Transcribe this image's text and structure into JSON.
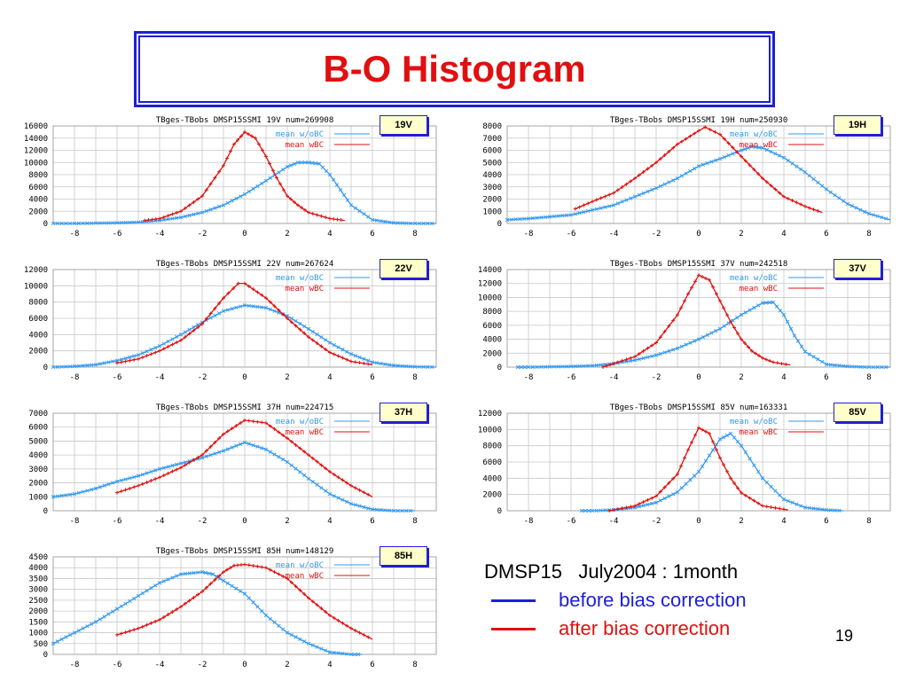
{
  "slide": {
    "title": "B-O Histogram",
    "info_line": "DMSP15   July2004 : 1month",
    "legend_before": "before bias correction",
    "legend_after": "after bias correction",
    "page_number": "19",
    "colors": {
      "before": "#1f1fd6",
      "after": "#e01010",
      "title": "#e01010",
      "frame": "#1f1fd6"
    }
  },
  "chart_data": [
    {
      "type": "line",
      "badge": "19V",
      "title": "TBges-TBobs DMSP15SSMI 19V num=269908",
      "xlim": [
        -9,
        9
      ],
      "xticks": [
        -8,
        -6,
        -4,
        -2,
        0,
        2,
        4,
        6,
        8
      ],
      "ylim": [
        0,
        16000
      ],
      "yticks": [
        0,
        2000,
        4000,
        6000,
        8000,
        10000,
        12000,
        14000,
        16000
      ],
      "series": [
        {
          "name": "mean w/oBC",
          "color": "#3399ee",
          "x": [
            -9,
            -8,
            -6,
            -5,
            -4,
            -3,
            -2,
            -1,
            0,
            1,
            2,
            2.5,
            3,
            3.5,
            4,
            4.5,
            5,
            6,
            7,
            8,
            9
          ],
          "y": [
            0,
            0,
            100,
            200,
            500,
            1000,
            1800,
            3000,
            4800,
            7000,
            9300,
            10000,
            10000,
            9800,
            8000,
            5500,
            3000,
            600,
            100,
            0,
            0
          ]
        },
        {
          "name": "mean wBC",
          "color": "#e01010",
          "x": [
            -4.7,
            -4,
            -3,
            -2,
            -1,
            -0.5,
            0,
            0.5,
            1,
            1.5,
            2,
            2.5,
            3,
            4,
            4.7
          ],
          "y": [
            500,
            800,
            2000,
            4500,
            9500,
            13000,
            15000,
            14000,
            11000,
            7500,
            4500,
            3000,
            1800,
            800,
            500
          ]
        }
      ]
    },
    {
      "type": "line",
      "badge": "19H",
      "title": "TBges-TBobs DMSP15SSMI 19H num=250930",
      "xlim": [
        -9,
        9
      ],
      "xticks": [
        -8,
        -6,
        -4,
        -2,
        0,
        2,
        4,
        6,
        8
      ],
      "ylim": [
        0,
        8000
      ],
      "yticks": [
        0,
        1000,
        2000,
        3000,
        4000,
        5000,
        6000,
        7000,
        8000
      ],
      "series": [
        {
          "name": "mean w/oBC",
          "color": "#3399ee",
          "x": [
            -9,
            -8,
            -6,
            -5,
            -4,
            -3,
            -2,
            -1,
            0,
            1,
            2,
            2.5,
            3,
            4,
            5,
            6,
            7,
            8,
            9
          ],
          "y": [
            300,
            400,
            700,
            1100,
            1500,
            2200,
            2900,
            3700,
            4700,
            5300,
            6000,
            6300,
            6200,
            5400,
            4200,
            2800,
            1600,
            800,
            300
          ]
        },
        {
          "name": "mean wBC",
          "color": "#e01010",
          "x": [
            -5.8,
            -5,
            -4,
            -3,
            -2,
            -1,
            0,
            0.3,
            1,
            2,
            3,
            4,
            5,
            5.8
          ],
          "y": [
            1200,
            1800,
            2500,
            3700,
            5000,
            6500,
            7600,
            7900,
            7300,
            5500,
            3700,
            2200,
            1400,
            900
          ]
        }
      ]
    },
    {
      "type": "line",
      "badge": "22V",
      "title": "TBges-TBobs DMSP15SSMI 22V num=267624",
      "xlim": [
        -9,
        9
      ],
      "xticks": [
        -8,
        -6,
        -4,
        -2,
        0,
        2,
        4,
        6,
        8
      ],
      "ylim": [
        0,
        12000
      ],
      "yticks": [
        0,
        2000,
        4000,
        6000,
        8000,
        10000,
        12000
      ],
      "series": [
        {
          "name": "mean w/oBC",
          "color": "#3399ee",
          "x": [
            -9,
            -8,
            -7,
            -6,
            -5,
            -4,
            -3,
            -2,
            -1,
            0,
            1,
            2,
            3,
            4,
            5,
            6,
            7,
            8,
            9
          ],
          "y": [
            0,
            100,
            300,
            800,
            1500,
            2600,
            4000,
            5500,
            6900,
            7600,
            7300,
            6300,
            4700,
            3000,
            1600,
            600,
            200,
            50,
            0
          ]
        },
        {
          "name": "mean wBC",
          "color": "#e01010",
          "x": [
            -6,
            -5,
            -4,
            -3,
            -2,
            -1,
            -0.3,
            0,
            1,
            2,
            3,
            4,
            5,
            6
          ],
          "y": [
            500,
            1000,
            2000,
            3300,
            5300,
            8500,
            10300,
            10300,
            8500,
            6000,
            3700,
            1800,
            700,
            300
          ]
        }
      ]
    },
    {
      "type": "line",
      "badge": "37V",
      "title": "TBges-TBobs DMSP15SSMI 37V num=242518",
      "xlim": [
        -9,
        9
      ],
      "xticks": [
        -8,
        -6,
        -4,
        -2,
        0,
        2,
        4,
        6,
        8
      ],
      "ylim": [
        0,
        14000
      ],
      "yticks": [
        0,
        2000,
        4000,
        6000,
        8000,
        10000,
        12000,
        14000
      ],
      "series": [
        {
          "name": "mean w/oBC",
          "color": "#3399ee",
          "x": [
            -8.5,
            -8,
            -6,
            -5,
            -4,
            -3,
            -2,
            -1,
            0,
            1,
            2,
            3,
            3.5,
            4,
            4.5,
            5,
            6,
            7,
            8,
            9
          ],
          "y": [
            0,
            0,
            100,
            200,
            500,
            1000,
            1700,
            2700,
            4000,
            5500,
            7500,
            9200,
            9300,
            7500,
            4500,
            2200,
            400,
            100,
            0,
            0
          ]
        },
        {
          "name": "mean wBC",
          "color": "#e01010",
          "x": [
            -4.5,
            -4,
            -3,
            -2,
            -1,
            -0.5,
            0,
            0.5,
            1,
            1.5,
            2,
            2.5,
            3,
            3.5,
            4.3
          ],
          "y": [
            0,
            500,
            1500,
            3500,
            7500,
            10500,
            13200,
            12500,
            9500,
            6500,
            4000,
            2300,
            1300,
            700,
            300
          ]
        }
      ]
    },
    {
      "type": "line",
      "badge": "37H",
      "title": "TBges-TBobs DMSP15SSMI 37H num=224715",
      "xlim": [
        -9,
        9
      ],
      "xticks": [
        -8,
        -6,
        -4,
        -2,
        0,
        2,
        4,
        6,
        8
      ],
      "ylim": [
        0,
        7000
      ],
      "yticks": [
        0,
        1000,
        2000,
        3000,
        4000,
        5000,
        6000,
        7000
      ],
      "series": [
        {
          "name": "mean w/oBC",
          "color": "#3399ee",
          "x": [
            -9,
            -8,
            -7,
            -6,
            -5,
            -4,
            -3,
            -2,
            -1,
            0,
            1,
            2,
            3,
            4,
            5,
            6,
            7,
            8
          ],
          "y": [
            1000,
            1200,
            1600,
            2100,
            2500,
            3000,
            3400,
            3800,
            4300,
            4900,
            4400,
            3500,
            2300,
            1200,
            500,
            100,
            0,
            0
          ]
        },
        {
          "name": "mean wBC",
          "color": "#e01010",
          "x": [
            -6,
            -5,
            -4,
            -3,
            -2,
            -1,
            0,
            1,
            2,
            3,
            4,
            5,
            6
          ],
          "y": [
            1300,
            1800,
            2400,
            3100,
            4000,
            5500,
            6500,
            6300,
            5200,
            4000,
            2800,
            1800,
            1000
          ]
        }
      ]
    },
    {
      "type": "line",
      "badge": "85V",
      "title": "TBges-TBobs DMSP15SSMI 85V num=163331",
      "xlim": [
        -9,
        9
      ],
      "xticks": [
        -8,
        -6,
        -4,
        -2,
        0,
        2,
        4,
        6,
        8
      ],
      "ylim": [
        0,
        12000
      ],
      "yticks": [
        0,
        2000,
        4000,
        6000,
        8000,
        10000,
        12000
      ],
      "series": [
        {
          "name": "mean w/oBC",
          "color": "#3399ee",
          "x": [
            -5.5,
            -5,
            -4,
            -3,
            -2,
            -1,
            0,
            0.5,
            1,
            1.5,
            2,
            3,
            4,
            5,
            6,
            6.8
          ],
          "y": [
            0,
            0,
            100,
            400,
            1000,
            2300,
            4800,
            6800,
            8800,
            9500,
            8000,
            4000,
            1400,
            400,
            100,
            0
          ]
        },
        {
          "name": "mean wBC",
          "color": "#e01010",
          "x": [
            -4.2,
            -4,
            -3,
            -2,
            -1,
            -0.5,
            0,
            0.5,
            1,
            1.5,
            2,
            3,
            4.2
          ],
          "y": [
            0,
            100,
            600,
            1800,
            4500,
            7500,
            10200,
            9500,
            6500,
            4000,
            2200,
            600,
            100
          ]
        }
      ]
    },
    {
      "type": "line",
      "badge": "85H",
      "title": "TBges-TBobs DMSP15SSMI 85H num=148129",
      "xlim": [
        -9,
        9
      ],
      "xticks": [
        -8,
        -6,
        -4,
        -2,
        0,
        2,
        4,
        6,
        8
      ],
      "ylim": [
        0,
        4500
      ],
      "yticks": [
        0,
        500,
        1000,
        1500,
        2000,
        2500,
        3000,
        3500,
        4000,
        4500
      ],
      "series": [
        {
          "name": "mean w/oBC",
          "color": "#3399ee",
          "x": [
            -9,
            -8,
            -7,
            -6,
            -5,
            -4,
            -3,
            -2,
            -1.5,
            -1,
            0,
            1,
            2,
            3,
            4,
            5,
            5.5
          ],
          "y": [
            500,
            1000,
            1500,
            2100,
            2700,
            3300,
            3700,
            3800,
            3700,
            3400,
            2800,
            1800,
            1000,
            500,
            100,
            0,
            0
          ]
        },
        {
          "name": "mean wBC",
          "color": "#e01010",
          "x": [
            -6,
            -5,
            -4,
            -3,
            -2,
            -1,
            -0.5,
            0,
            1,
            2,
            3,
            4,
            5,
            6
          ],
          "y": [
            900,
            1200,
            1600,
            2200,
            2900,
            3800,
            4100,
            4150,
            4000,
            3500,
            2600,
            1800,
            1200,
            700
          ]
        }
      ]
    }
  ]
}
